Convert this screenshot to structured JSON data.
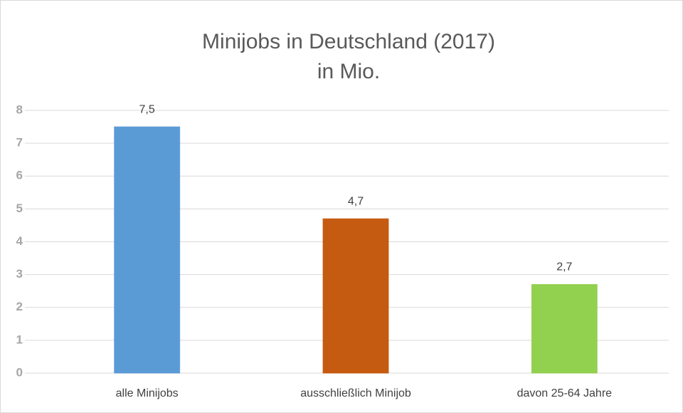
{
  "chart_data": {
    "type": "bar",
    "title": [
      "Minijobs in Deutschland (2017)",
      "in Mio."
    ],
    "categories": [
      "alle Minijobs",
      "ausschließlich Minijob",
      "davon 25-64 Jahre"
    ],
    "values": [
      7.5,
      4.7,
      2.7
    ],
    "value_labels": [
      "7,5",
      "4,7",
      "2,7"
    ],
    "colors": [
      "#5b9bd5",
      "#c55a11",
      "#92d050"
    ],
    "ylim": [
      0,
      8
    ],
    "yticks": [
      0,
      1,
      2,
      3,
      4,
      5,
      6,
      7,
      8
    ],
    "grid": true
  }
}
